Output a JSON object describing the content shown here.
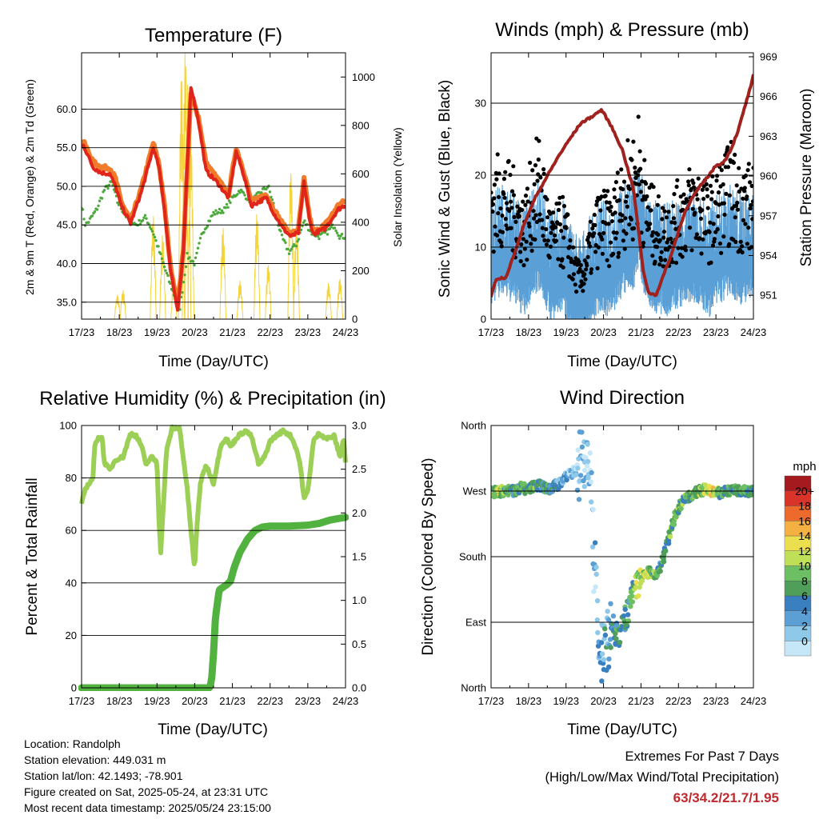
{
  "colors": {
    "temp2m": "#e0251b",
    "temp9m": "#f07b2a",
    "dewpoint": "#4caa3c",
    "solar": "#f5d33b",
    "gust": "#000000",
    "wind": "#5a9fd6",
    "pressure": "#a0221e",
    "rh": "#9bcf55",
    "precip": "#52b23f",
    "extremes": "#c0282d"
  },
  "chart_data": [
    {
      "type": "line",
      "title": "Temperature (F)",
      "xlabel": "Time (Day/UTC)",
      "ylabel": "2m & 9m T (Red, Orange) & 2m Td (Green)",
      "y2label": "Solar Insolation (Yellow)",
      "x_ticks": [
        "17/23",
        "18/23",
        "19/23",
        "20/23",
        "21/23",
        "22/23",
        "23/23",
        "24/23"
      ],
      "ylim": [
        32.8,
        67.3
      ],
      "y_ticks": [
        "35.0",
        "40.0",
        "45.0",
        "50.0",
        "55.0",
        "60.0"
      ],
      "y2lim": [
        0,
        1100
      ],
      "y2_ticks": [
        "0",
        "200",
        "400",
        "600",
        "800",
        "1000"
      ],
      "grid": true,
      "series": [
        {
          "key": "temp9m",
          "x": [
            0,
            0.05,
            0.15,
            0.3,
            0.5,
            0.75,
            0.9,
            1.05,
            1.3,
            1.6,
            1.9,
            2.05,
            2.2,
            2.35,
            2.55,
            2.7,
            2.9,
            3.1,
            3.3,
            3.6,
            3.9,
            4.1,
            4.3,
            4.5,
            4.7,
            4.9,
            5.1,
            5.35,
            5.55,
            5.75,
            5.9,
            6.05,
            6.15,
            6.3,
            6.45,
            6.6,
            6.8,
            7.0
          ],
          "values": [
            55.4,
            55.8,
            54.8,
            53.2,
            52.5,
            52.4,
            51.0,
            48.0,
            45.5,
            50.0,
            55.6,
            53.0,
            47.5,
            40.0,
            34.5,
            42.0,
            62.0,
            59.0,
            53.0,
            51.0,
            49.0,
            55.0,
            52.0,
            48.0,
            48.5,
            49.0,
            47.0,
            45.0,
            43.8,
            44.5,
            51.0,
            46.0,
            44.0,
            44.5,
            45.0,
            46.0,
            47.5,
            48.2
          ]
        },
        {
          "key": "temp2m",
          "x": [
            0,
            0.05,
            0.15,
            0.3,
            0.5,
            0.75,
            0.9,
            1.05,
            1.3,
            1.6,
            1.9,
            2.05,
            2.2,
            2.35,
            2.55,
            2.7,
            2.9,
            3.1,
            3.3,
            3.6,
            3.9,
            4.1,
            4.3,
            4.5,
            4.7,
            4.9,
            5.1,
            5.35,
            5.55,
            5.75,
            5.9,
            6.05,
            6.15,
            6.3,
            6.45,
            6.6,
            6.8,
            7.0
          ],
          "values": [
            55.0,
            55.3,
            54.2,
            52.5,
            51.8,
            51.6,
            50.0,
            47.5,
            45.2,
            49.5,
            55.0,
            52.5,
            47.0,
            39.5,
            34.0,
            41.5,
            63.0,
            58.5,
            52.0,
            50.5,
            48.5,
            54.5,
            51.5,
            47.5,
            48.0,
            48.5,
            46.5,
            44.5,
            43.5,
            44.0,
            50.5,
            45.5,
            43.8,
            44.2,
            44.5,
            45.5,
            47.0,
            47.6
          ]
        },
        {
          "key": "dewpoint",
          "x": [
            0,
            0.1,
            0.2,
            0.4,
            0.6,
            0.8,
            0.95,
            1.2,
            1.45,
            1.7,
            1.9,
            2.1,
            2.3,
            2.45,
            2.6,
            2.8,
            3.0,
            3.2,
            3.5,
            3.8,
            4.0,
            4.2,
            4.5,
            4.8,
            4.95,
            5.1,
            5.3,
            5.5,
            5.7,
            5.9,
            6.1,
            6.3,
            6.5,
            6.7,
            6.85,
            7.0
          ],
          "values": [
            47.5,
            45.0,
            45.5,
            47.0,
            49.5,
            50.5,
            48.0,
            46.0,
            45.0,
            46.0,
            44.0,
            41.0,
            38.0,
            36.0,
            34.0,
            41.0,
            40.0,
            44.0,
            46.5,
            47.0,
            48.5,
            49.5,
            48.0,
            49.5,
            50.0,
            47.5,
            43.5,
            41.5,
            42.5,
            45.5,
            44.0,
            43.5,
            44.0,
            45.0,
            43.5,
            43.5
          ]
        }
      ],
      "solar": {
        "peaks": [
          {
            "x": 0.95,
            "v": 100
          },
          {
            "x": 1.1,
            "v": 120
          },
          {
            "x": 1.9,
            "v": 430
          },
          {
            "x": 2.15,
            "v": 350
          },
          {
            "x": 2.45,
            "v": 170
          },
          {
            "x": 2.65,
            "v": 1020
          },
          {
            "x": 2.75,
            "v": 1120
          },
          {
            "x": 2.82,
            "v": 980
          },
          {
            "x": 2.9,
            "v": 750
          },
          {
            "x": 3.75,
            "v": 380
          },
          {
            "x": 4.2,
            "v": 160
          },
          {
            "x": 4.65,
            "v": 440
          },
          {
            "x": 4.95,
            "v": 230
          },
          {
            "x": 5.55,
            "v": 620
          },
          {
            "x": 5.7,
            "v": 400
          },
          {
            "x": 6.55,
            "v": 150
          },
          {
            "x": 6.85,
            "v": 170
          }
        ],
        "width": 0.08
      }
    },
    {
      "type": "scatter",
      "title": "Winds (mph) & Pressure (mb)",
      "xlabel": "Time (Day/UTC)",
      "ylabel": "Sonic Wind & Gust (Blue, Black)",
      "y2label": "Station Pressure (Maroon)",
      "x_ticks": [
        "17/23",
        "18/23",
        "19/23",
        "20/23",
        "21/23",
        "22/23",
        "23/23",
        "24/23"
      ],
      "ylim": [
        0,
        37
      ],
      "y_ticks": [
        "0",
        "10",
        "20",
        "30"
      ],
      "y2lim": [
        949.2,
        969.3
      ],
      "y2_ticks": [
        "951",
        "954",
        "957",
        "960",
        "963",
        "966",
        "969"
      ],
      "grid": true,
      "wind_level_x": [
        0,
        0.3,
        0.6,
        0.9,
        1.1,
        1.3,
        1.6,
        1.9,
        2.05,
        2.2,
        2.4,
        2.6,
        2.9,
        3.2,
        3.5,
        3.8,
        3.95,
        4.1,
        4.3,
        4.6,
        4.9,
        5.2,
        5.5,
        5.8,
        6.1,
        6.4,
        6.6,
        6.8,
        7.0
      ],
      "wind_level": [
        9,
        10,
        9,
        7,
        10,
        11,
        6,
        8,
        6,
        4,
        3,
        5,
        8,
        7,
        10,
        11,
        14,
        10,
        8,
        7,
        8,
        9,
        9,
        7,
        9,
        10,
        9,
        9,
        9
      ],
      "gust_level": [
        18,
        19,
        17,
        14,
        19,
        21,
        12,
        14,
        12,
        8,
        6,
        10,
        15,
        14,
        19,
        21,
        24,
        18,
        15,
        13,
        15,
        17,
        18,
        15,
        18,
        20,
        18,
        18,
        17
      ],
      "pressure": {
        "x": [
          0,
          0.1,
          0.2,
          0.4,
          0.6,
          0.9,
          1.2,
          1.5,
          1.8,
          2.1,
          2.4,
          2.7,
          2.95,
          3.2,
          3.5,
          3.8,
          3.95,
          4.05,
          4.2,
          4.4,
          4.6,
          4.8,
          5.0,
          5.2,
          5.4,
          5.6,
          5.8,
          6.0,
          6.2,
          6.4,
          6.6,
          6.8,
          6.95,
          7.0
        ],
        "values": [
          950.8,
          952.0,
          952.3,
          952.3,
          954.0,
          956.5,
          958.5,
          960.0,
          961.5,
          962.8,
          964.0,
          964.5,
          965.0,
          963.8,
          962.0,
          959.0,
          955.5,
          953.0,
          951.2,
          951.0,
          952.5,
          954.0,
          955.8,
          957.5,
          958.5,
          959.3,
          960.0,
          960.8,
          961.0,
          962.0,
          963.5,
          965.5,
          967.0,
          967.6
        ]
      }
    },
    {
      "type": "line",
      "title": "Relative Humidity (%) & Precipitation (in)",
      "xlabel": "Time (Day/UTC)",
      "ylabel": "Percent & Total Rainfall",
      "x_ticks": [
        "17/23",
        "18/23",
        "19/23",
        "20/23",
        "21/23",
        "22/23",
        "23/23",
        "24/23"
      ],
      "ylim": [
        0,
        100
      ],
      "y_ticks": [
        "0",
        "20",
        "40",
        "60",
        "80",
        "100"
      ],
      "y2lim": [
        0,
        3
      ],
      "y2_ticks": [
        "0.0",
        "0.5",
        "1.0",
        "1.5",
        "2.0",
        "2.5",
        "3.0"
      ],
      "grid": true,
      "series": [
        {
          "key": "rh",
          "x": [
            0,
            0.1,
            0.2,
            0.3,
            0.35,
            0.45,
            0.55,
            0.6,
            0.75,
            0.9,
            1.1,
            1.3,
            1.45,
            1.6,
            1.7,
            1.85,
            2.0,
            2.05,
            2.1,
            2.25,
            2.4,
            2.6,
            2.8,
            2.9,
            3.0,
            3.05,
            3.15,
            3.3,
            3.5,
            3.7,
            3.85,
            3.95,
            4.15,
            4.35,
            4.5,
            4.7,
            4.85,
            5.0,
            5.15,
            5.35,
            5.55,
            5.7,
            5.8,
            5.9,
            6.0,
            6.15,
            6.3,
            6.5,
            6.7,
            6.85,
            6.95,
            7.0
          ],
          "values": [
            70,
            76,
            78,
            80,
            92,
            96,
            95,
            86,
            83,
            87,
            88,
            97,
            96,
            92,
            85,
            88,
            86,
            65,
            52,
            90,
            99,
            99,
            76,
            60,
            45,
            60,
            78,
            85,
            78,
            93,
            95,
            92,
            96,
            98,
            96,
            85,
            88,
            94,
            96,
            98,
            96,
            91,
            85,
            72,
            75,
            94,
            97,
            95,
            96,
            88,
            95,
            86
          ]
        },
        {
          "key": "precip",
          "scale": "y2",
          "x": [
            0,
            3.4,
            3.45,
            3.5,
            3.55,
            3.65,
            3.75,
            3.85,
            3.95,
            4.05,
            4.2,
            4.4,
            4.6,
            4.8,
            5.0,
            5.5,
            6.0,
            6.3,
            6.6,
            7.0
          ],
          "values": [
            0,
            0,
            0.1,
            0.4,
            0.8,
            1.12,
            1.15,
            1.18,
            1.22,
            1.38,
            1.55,
            1.7,
            1.8,
            1.84,
            1.85,
            1.85,
            1.86,
            1.88,
            1.92,
            1.95
          ]
        }
      ]
    },
    {
      "type": "scatter",
      "title": "Wind Direction",
      "xlabel": "Time (Day/UTC)",
      "ylabel": "Direction (Colored By Speed)",
      "x_ticks": [
        "17/23",
        "18/23",
        "19/23",
        "20/23",
        "21/23",
        "22/23",
        "23/23",
        "24/23"
      ],
      "y_ticks": [
        "North",
        "East",
        "South",
        "West",
        "North"
      ],
      "ylim": [
        0,
        360
      ],
      "grid": true,
      "colorbar": {
        "title": "mph",
        "labels": [
          "0",
          "2",
          "4",
          "6",
          "8",
          "10",
          "12",
          "14",
          "16",
          "18",
          "20+"
        ],
        "colors": [
          "#c6e7f8",
          "#8fc9ea",
          "#5b9fd5",
          "#3a7fbf",
          "#4f9e5a",
          "#6cbf62",
          "#bfe056",
          "#ecdf4f",
          "#f5b042",
          "#ec6a2c",
          "#d8342a",
          "#a41a1e"
        ]
      },
      "direction_x": [
        0,
        0.2,
        0.4,
        0.6,
        0.8,
        1.0,
        1.2,
        1.4,
        1.6,
        1.8,
        2.0,
        2.3,
        2.6,
        2.9,
        3.0,
        3.2,
        3.4,
        3.6,
        3.8,
        4.0,
        4.2,
        4.4,
        4.55,
        4.7,
        4.9,
        5.1,
        5.3,
        5.5,
        5.7,
        5.9,
        6.1,
        6.3,
        6.5,
        6.7,
        7.0
      ],
      "direction_deg": [
        270,
        268,
        272,
        270,
        275,
        272,
        278,
        276,
        272,
        280,
        290,
        300,
        330,
        20,
        60,
        80,
        75,
        95,
        130,
        150,
        160,
        155,
        170,
        200,
        235,
        255,
        262,
        270,
        272,
        270,
        268,
        270,
        272,
        270,
        270
      ],
      "speed": [
        10,
        12,
        9,
        7,
        8,
        8,
        9,
        7,
        6,
        5,
        3,
        2,
        2,
        3,
        4,
        6,
        8,
        7,
        9,
        13,
        11,
        9,
        7,
        8,
        10,
        9,
        8,
        10,
        12,
        14,
        9,
        8,
        7,
        8,
        8
      ]
    }
  ],
  "info": {
    "location": "Location: Randolph",
    "elevation": "Station elevation: 449.031 m",
    "latlon": "Station lat/lon: 42.1493; -78.901",
    "created": "Figure created on Sat, 2025-05-24, at 23:31 UTC",
    "timestamp": "Most recent data timestamp: 2025/05/24 23:15:00"
  },
  "extremes": {
    "title": "Extremes For Past 7 Days",
    "subtitle": "(High/Low/Max Wind/Total Precipitation)",
    "values": "63/34.2/21.7/1.95"
  }
}
